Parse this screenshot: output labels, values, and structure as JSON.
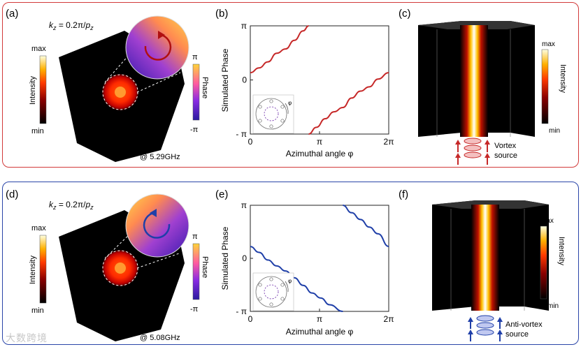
{
  "figure": {
    "top_row": {
      "map": {
        "label": "(a)",
        "kz": "k_z = 0.2π/p_z",
        "kz_main": "k",
        "kz_sub": "z",
        "kz_mid": " = 0.2π/",
        "kz_p": "p",
        "kz_psub": "z",
        "intensity_label": "Intensity",
        "intensity_max": "max",
        "intensity_min": "min",
        "phase_label": "Phase",
        "phase_max": "π",
        "phase_min": "-π",
        "frequency": "@ 5.29GHz"
      },
      "phase_plot": {
        "label": "(b)",
        "ylabel": "Simulated Phase",
        "xlabel": "Azimuthal angle φ",
        "inset_label": "φ"
      },
      "field_3d": {
        "label": "(c)",
        "intensity_label": "Intensity",
        "max": "max",
        "min": "min",
        "source_line1": "Vortex",
        "source_line2": "source"
      }
    },
    "bottom_row": {
      "map": {
        "label": "(d)",
        "kz": "k_z = 0.2π/p_z",
        "kz_main": "k",
        "kz_sub": "z",
        "kz_mid": " = 0.2π/",
        "kz_p": "p",
        "kz_psub": "z",
        "intensity_label": "Intensity",
        "intensity_max": "max",
        "intensity_min": "min",
        "phase_label": "Phase",
        "phase_max": "π",
        "phase_min": "-π",
        "frequency": "@ 5.08GHz"
      },
      "phase_plot": {
        "label": "(e)",
        "ylabel": "Simulated Phase",
        "xlabel": "Azimuthal angle φ",
        "inset_label": "φ"
      },
      "field_3d": {
        "label": "(f)",
        "intensity_label": "Intensity",
        "max": "max",
        "min": "min",
        "source_line1": "Anti-vortex",
        "source_line2": "source"
      }
    },
    "watermark": "大数跨境"
  },
  "colors": {
    "vortex": "#c62828",
    "anti_vortex": "#1f3fa8",
    "red_frame": "#d23a3a",
    "blue_frame": "#2a45a8"
  },
  "chart_data": [
    {
      "type": "line",
      "title": "(b)",
      "xlabel": "Azimuthal angle φ",
      "ylabel": "Simulated Phase",
      "x_ticks": [
        "0",
        "π",
        "2π"
      ],
      "y_ticks": [
        "- π",
        "0",
        "π"
      ],
      "xlim": [
        0,
        6.2832
      ],
      "ylim": [
        -3.1416,
        3.1416
      ],
      "series": [
        {
          "name": "phase branch 1",
          "color": "#c62828",
          "x": [
            0,
            0.4,
            0.8,
            1.2,
            1.6,
            2.0,
            2.4,
            2.65
          ],
          "y": [
            0.42,
            0.7,
            1.05,
            1.55,
            1.8,
            2.3,
            2.85,
            3.14
          ]
        },
        {
          "name": "phase branch 2",
          "color": "#c62828",
          "x": [
            2.65,
            3.0,
            3.4,
            3.8,
            4.2,
            4.6,
            5.0,
            5.4,
            5.8,
            6.2832
          ],
          "y": [
            -3.14,
            -2.75,
            -2.25,
            -1.85,
            -1.6,
            -1.05,
            -0.65,
            -0.4,
            0.05,
            0.42
          ]
        }
      ]
    },
    {
      "type": "line",
      "title": "(e)",
      "xlabel": "Azimuthal angle φ",
      "ylabel": "Simulated Phase",
      "x_ticks": [
        "0",
        "π",
        "2π"
      ],
      "y_ticks": [
        "- π",
        "0",
        "π"
      ],
      "xlim": [
        0,
        6.2832
      ],
      "ylim": [
        -3.1416,
        3.1416
      ],
      "series": [
        {
          "name": "phase branch 1",
          "color": "#1f3fa8",
          "x": [
            0,
            0.4,
            0.8,
            1.2,
            1.6,
            2.0,
            2.4,
            2.8,
            3.2,
            3.6,
            4.2
          ],
          "y": [
            0.7,
            0.35,
            -0.1,
            -0.45,
            -0.75,
            -1.15,
            -1.6,
            -2.05,
            -2.35,
            -2.75,
            -3.14
          ]
        },
        {
          "name": "phase branch 2",
          "color": "#1f3fa8",
          "x": [
            4.2,
            4.6,
            5.0,
            5.4,
            5.8,
            6.2832
          ],
          "y": [
            3.14,
            2.7,
            2.3,
            1.85,
            1.45,
            0.7
          ]
        }
      ]
    }
  ]
}
